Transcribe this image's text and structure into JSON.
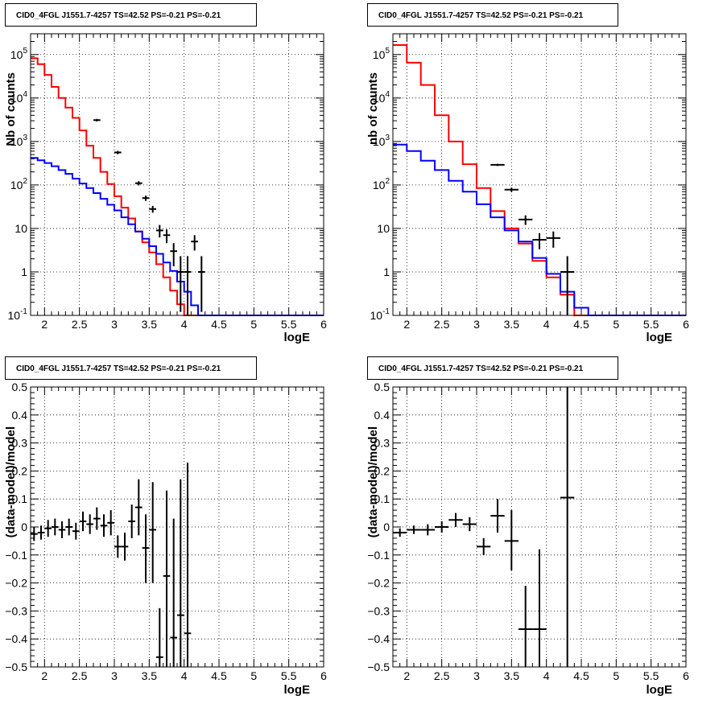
{
  "chart_data": [
    {
      "type": "line",
      "title": "CID0_4FGL J1551.7-4257 TS=42.52 PS=-0.21 PS=-0.21",
      "xlabel": "logE",
      "ylabel": "Nb of counts",
      "xlim": [
        1.8,
        6.0
      ],
      "ylim": [
        0.1,
        300000
      ],
      "yscale": "log",
      "grid": true,
      "x_ticks": [
        "2",
        "2.5",
        "3",
        "3.5",
        "4",
        "4.5",
        "5",
        "5.5",
        "6"
      ],
      "y_ticks": [
        "10^-1",
        "1",
        "10",
        "10^2",
        "10^3",
        "10^4",
        "10^5"
      ],
      "bin_width": 0.1,
      "colors": {
        "total": "#ff0000",
        "component": "#0000ff",
        "data": "#000000"
      },
      "series": [
        {
          "role": "total",
          "bins_start": 1.8,
          "values": [
            82000,
            60000,
            34000,
            18000,
            10000,
            6000,
            3500,
            1800,
            800,
            420,
            200,
            105,
            55,
            30,
            17,
            8.5,
            4.8,
            2.8,
            1.5,
            0.75,
            0.37,
            0.18,
            0.1,
            0.1,
            0.1,
            0.1,
            0.1,
            0.1,
            0.1,
            0.1,
            0.1,
            0.1,
            0.1,
            0.1,
            0.1,
            0.1,
            0.1,
            0.1,
            0.1,
            0.1,
            0.1,
            0.1
          ]
        },
        {
          "role": "component",
          "bins_start": 1.8,
          "values": [
            420,
            370,
            320,
            270,
            220,
            180,
            140,
            108,
            85,
            65,
            48,
            35,
            26,
            18,
            12.5,
            8.5,
            5.8,
            3.9,
            2.6,
            1.65,
            1.05,
            0.6,
            0.35,
            0.17,
            0.1,
            0.1,
            0.1,
            0.1,
            0.1,
            0.1,
            0.1,
            0.1,
            0.1,
            0.1,
            0.1,
            0.1,
            0.1,
            0.1,
            0.1,
            0.1,
            0.1,
            0.1
          ]
        },
        {
          "role": "data",
          "points": [
            {
              "x": 2.75,
              "y": 3100,
              "ylo": 2900,
              "yhi": 3300
            },
            {
              "x": 3.05,
              "y": 560,
              "ylo": 510,
              "yhi": 610
            },
            {
              "x": 3.35,
              "y": 110,
              "ylo": 98,
              "yhi": 122
            },
            {
              "x": 3.45,
              "y": 50,
              "ylo": 43,
              "yhi": 57
            },
            {
              "x": 3.55,
              "y": 28,
              "ylo": 23,
              "yhi": 33
            },
            {
              "x": 3.65,
              "y": 9,
              "ylo": 6.2,
              "yhi": 12
            },
            {
              "x": 3.75,
              "y": 7,
              "ylo": 4.6,
              "yhi": 9.5
            },
            {
              "x": 3.85,
              "y": 3,
              "ylo": 1.35,
              "yhi": 4.6
            },
            {
              "x": 3.95,
              "y": 1,
              "ylo": 0.12,
              "yhi": 2.3
            },
            {
              "x": 4.05,
              "y": 1,
              "ylo": 0.1,
              "yhi": 2.3
            },
            {
              "x": 4.15,
              "y": 5,
              "ylo": 3.1,
              "yhi": 7
            },
            {
              "x": 4.25,
              "y": 1,
              "ylo": 0.12,
              "yhi": 2.3
            }
          ]
        }
      ]
    },
    {
      "type": "line",
      "title": "CID0_4FGL J1551.7-4257 TS=42.52 PS=-0.21 PS=-0.21",
      "xlabel": "logE",
      "ylabel": "nb of counts",
      "xlim": [
        1.8,
        6.0
      ],
      "ylim": [
        0.1,
        300000
      ],
      "yscale": "log",
      "grid": true,
      "x_ticks": [
        "2",
        "2.5",
        "3",
        "3.5",
        "4",
        "4.5",
        "5",
        "5.5",
        "6"
      ],
      "y_ticks": [
        "10^-1",
        "1",
        "10",
        "10^2",
        "10^3",
        "10^4",
        "10^5"
      ],
      "bin_width": 0.2,
      "colors": {
        "total": "#ff0000",
        "component": "#0000ff",
        "data": "#000000"
      },
      "series": [
        {
          "role": "total",
          "bins_start": 1.8,
          "values": [
            165000,
            65000,
            20000,
            4000,
            1000,
            300,
            85,
            25,
            10,
            4.5,
            1.8,
            0.75,
            0.3,
            0.1,
            0.1,
            0.1,
            0.1,
            0.1,
            0.1,
            0.1,
            0.1
          ]
        },
        {
          "role": "component",
          "bins_start": 1.8,
          "values": [
            850,
            600,
            360,
            220,
            125,
            70,
            36,
            18,
            9,
            5,
            2.1,
            0.9,
            0.35,
            0.15,
            0.1,
            0.1,
            0.1,
            0.1,
            0.1,
            0.1,
            0.1
          ]
        },
        {
          "role": "data",
          "points": [
            {
              "x": 3.3,
              "y": 290,
              "ylo": 273,
              "yhi": 307
            },
            {
              "x": 3.5,
              "y": 78,
              "ylo": 69,
              "yhi": 87
            },
            {
              "x": 3.7,
              "y": 16,
              "ylo": 12,
              "yhi": 20
            },
            {
              "x": 3.9,
              "y": 5.5,
              "ylo": 3.3,
              "yhi": 7.8
            },
            {
              "x": 4.1,
              "y": 6,
              "ylo": 3.6,
              "yhi": 8.5
            },
            {
              "x": 4.3,
              "y": 1,
              "ylo": 0.1,
              "yhi": 2.3
            }
          ]
        }
      ]
    },
    {
      "type": "scatter",
      "title": "CID0_4FGL J1551.7-4257 TS=42.52 PS=-0.21 PS=-0.21",
      "xlabel": "logE",
      "ylabel": "(data-model)/model",
      "xlim": [
        1.8,
        6.0
      ],
      "ylim": [
        -0.5,
        0.5
      ],
      "grid": true,
      "x_ticks": [
        "2",
        "2.5",
        "3",
        "3.5",
        "4",
        "4.5",
        "5",
        "5.5",
        "6"
      ],
      "y_ticks": [
        "-0.5",
        "-0.4",
        "-0.3",
        "-0.2",
        "-0.1",
        "0",
        "0.1",
        "0.2",
        "0.3",
        "0.4",
        "0.5"
      ],
      "bin_width": 0.1,
      "colors": {
        "data": "#000000"
      },
      "series": [
        {
          "role": "data",
          "points": [
            {
              "x": 1.85,
              "y": -0.025,
              "ylo": -0.05,
              "yhi": 0.0
            },
            {
              "x": 1.95,
              "y": -0.02,
              "ylo": -0.045,
              "yhi": 0.005
            },
            {
              "x": 2.05,
              "y": -0.005,
              "ylo": -0.035,
              "yhi": 0.025
            },
            {
              "x": 2.15,
              "y": 0.0,
              "ylo": -0.03,
              "yhi": 0.03
            },
            {
              "x": 2.25,
              "y": -0.01,
              "ylo": -0.04,
              "yhi": 0.02
            },
            {
              "x": 2.35,
              "y": 0.0,
              "ylo": -0.03,
              "yhi": 0.03
            },
            {
              "x": 2.45,
              "y": -0.015,
              "ylo": -0.045,
              "yhi": 0.015
            },
            {
              "x": 2.55,
              "y": 0.02,
              "ylo": -0.015,
              "yhi": 0.055
            },
            {
              "x": 2.65,
              "y": 0.01,
              "ylo": -0.025,
              "yhi": 0.045
            },
            {
              "x": 2.75,
              "y": 0.03,
              "ylo": -0.01,
              "yhi": 0.07
            },
            {
              "x": 2.85,
              "y": 0.005,
              "ylo": -0.035,
              "yhi": 0.045
            },
            {
              "x": 2.95,
              "y": 0.015,
              "ylo": -0.03,
              "yhi": 0.06
            },
            {
              "x": 3.05,
              "y": -0.07,
              "ylo": -0.11,
              "yhi": -0.03
            },
            {
              "x": 3.15,
              "y": -0.07,
              "ylo": -0.12,
              "yhi": -0.02
            },
            {
              "x": 3.25,
              "y": 0.02,
              "ylo": -0.04,
              "yhi": 0.08
            },
            {
              "x": 3.35,
              "y": 0.07,
              "ylo": -0.03,
              "yhi": 0.17
            },
            {
              "x": 3.45,
              "y": -0.075,
              "ylo": -0.2,
              "yhi": 0.045
            },
            {
              "x": 3.55,
              "y": -0.01,
              "ylo": -0.2,
              "yhi": 0.16
            },
            {
              "x": 3.65,
              "y": -0.465,
              "ylo": -0.5,
              "yhi": -0.29
            },
            {
              "x": 3.75,
              "y": -0.175,
              "ylo": -0.5,
              "yhi": 0.13
            },
            {
              "x": 3.85,
              "y": -0.395,
              "ylo": -0.5,
              "yhi": 0.03
            },
            {
              "x": 3.95,
              "y": -0.315,
              "ylo": -0.5,
              "yhi": 0.17
            },
            {
              "x": 4.05,
              "y": -0.38,
              "ylo": -0.5,
              "yhi": 0.23
            }
          ]
        }
      ]
    },
    {
      "type": "scatter",
      "title": "CID0_4FGL J1551.7-4257 TS=42.52 PS=-0.21 PS=-0.21",
      "xlabel": "logE",
      "ylabel": "(data-model)/model",
      "xlim": [
        1.8,
        6.0
      ],
      "ylim": [
        -0.5,
        0.5
      ],
      "grid": true,
      "x_ticks": [
        "2",
        "2.5",
        "3",
        "3.5",
        "4",
        "4.5",
        "5",
        "5.5",
        "6"
      ],
      "y_ticks": [
        "-0.5",
        "-0.4",
        "-0.3",
        "-0.2",
        "-0.1",
        "0",
        "0.1",
        "0.2",
        "0.3",
        "0.4",
        "0.5"
      ],
      "bin_width": 0.2,
      "colors": {
        "data": "#000000"
      },
      "series": [
        {
          "role": "data",
          "points": [
            {
              "x": 1.9,
              "y": -0.02,
              "ylo": -0.035,
              "yhi": -0.005
            },
            {
              "x": 2.1,
              "y": -0.01,
              "ylo": -0.025,
              "yhi": 0.005
            },
            {
              "x": 2.3,
              "y": -0.01,
              "ylo": -0.03,
              "yhi": 0.01
            },
            {
              "x": 2.5,
              "y": 0.0,
              "ylo": -0.02,
              "yhi": 0.02
            },
            {
              "x": 2.7,
              "y": 0.025,
              "ylo": 0.0,
              "yhi": 0.05
            },
            {
              "x": 2.9,
              "y": 0.01,
              "ylo": -0.015,
              "yhi": 0.035
            },
            {
              "x": 3.1,
              "y": -0.07,
              "ylo": -0.1,
              "yhi": -0.04
            },
            {
              "x": 3.3,
              "y": 0.04,
              "ylo": -0.02,
              "yhi": 0.1
            },
            {
              "x": 3.5,
              "y": -0.05,
              "ylo": -0.155,
              "yhi": 0.06
            },
            {
              "x": 3.7,
              "y": -0.365,
              "ylo": -0.5,
              "yhi": -0.21
            },
            {
              "x": 3.9,
              "y": -0.365,
              "ylo": -0.5,
              "yhi": -0.08
            },
            {
              "x": 4.3,
              "y": 0.105,
              "ylo": -0.5,
              "yhi": 0.5
            }
          ]
        }
      ]
    }
  ]
}
